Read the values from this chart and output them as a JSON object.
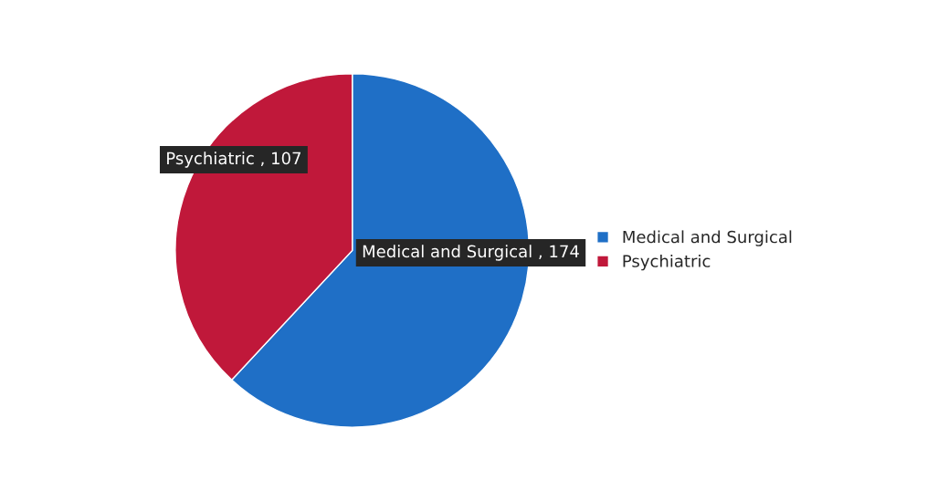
{
  "chart_data": {
    "type": "pie",
    "categories": [
      "Medical and Surgical",
      "Psychiatric"
    ],
    "values": [
      174,
      107
    ],
    "colors": [
      "#1f6fc6",
      "#c0183a"
    ],
    "value_labels": [
      "Medical and Surgical , 174",
      "Psychiatric , 107"
    ],
    "legend": "right"
  }
}
